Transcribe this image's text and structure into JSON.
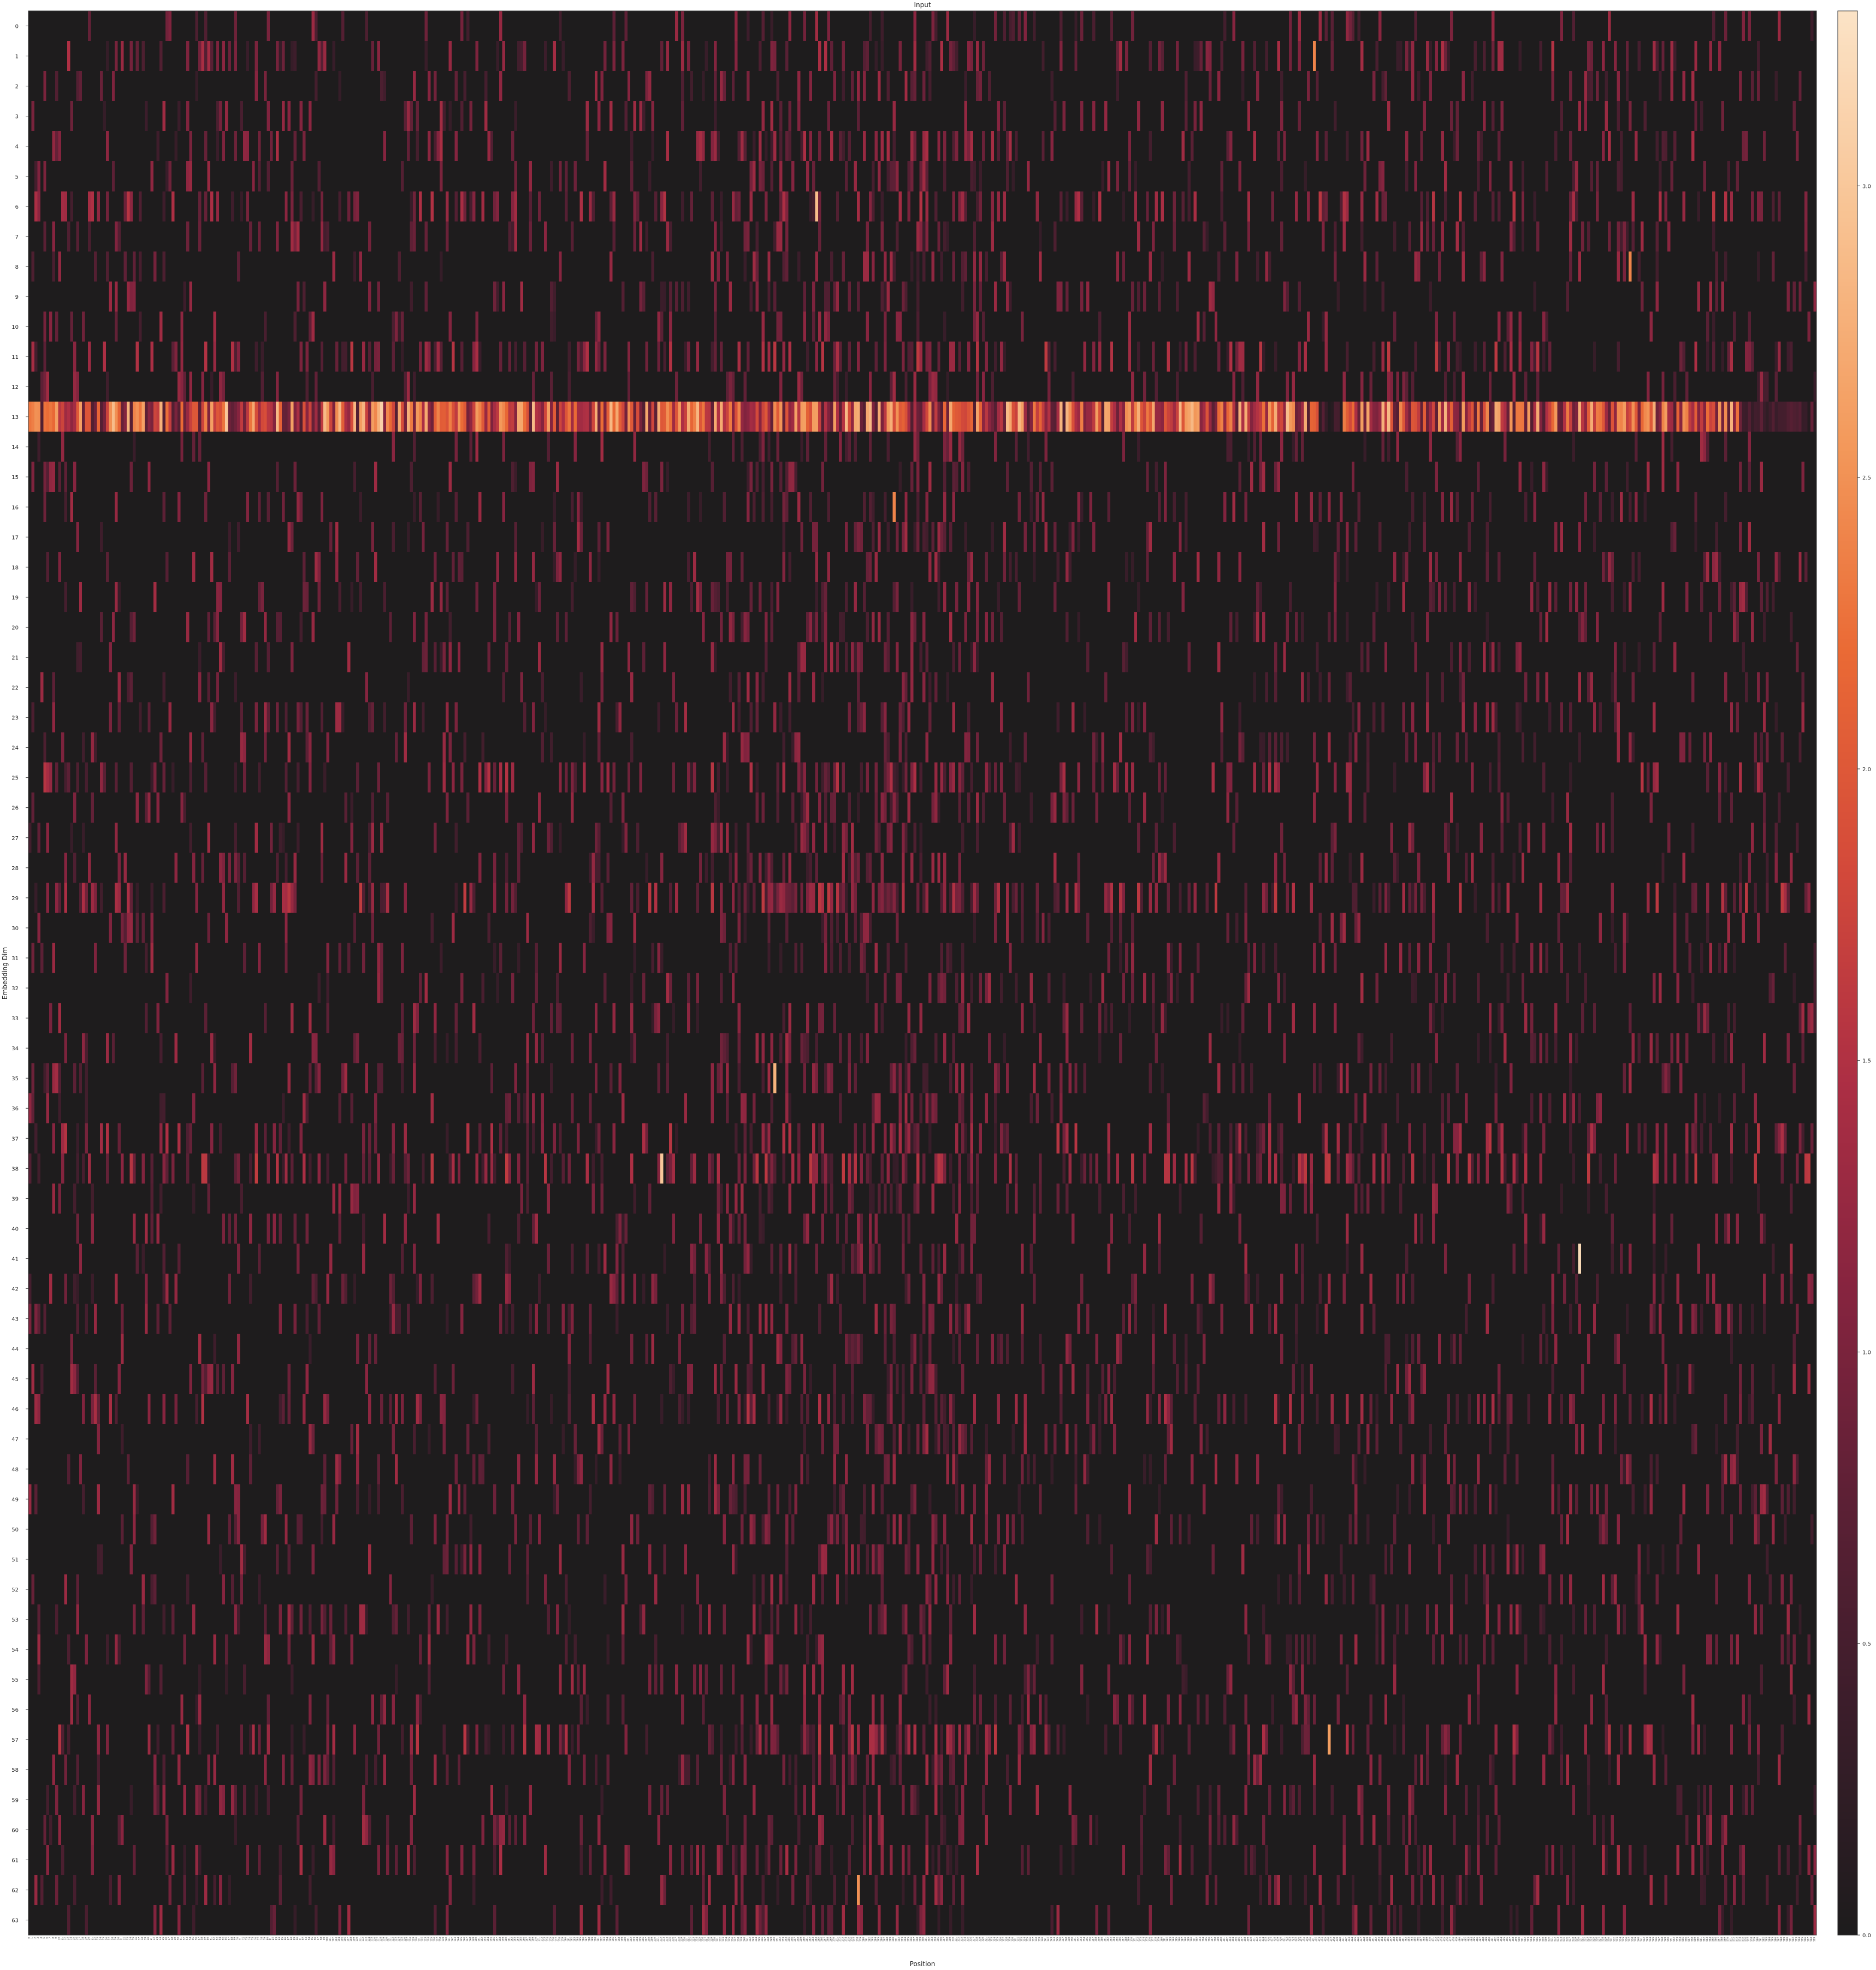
{
  "chart_data": {
    "type": "heatmap",
    "title": "Input",
    "xlabel": "Position",
    "ylabel": "Embedding Dim",
    "rows": 64,
    "columns": 600,
    "y_ticks": [
      0,
      1,
      2,
      3,
      4,
      5,
      6,
      7,
      8,
      9,
      10,
      11,
      12,
      13,
      14,
      15,
      16,
      17,
      18,
      19,
      20,
      21,
      22,
      23,
      24,
      25,
      26,
      27,
      28,
      29,
      30,
      31,
      32,
      33,
      34,
      35,
      36,
      37,
      38,
      39,
      40,
      41,
      42,
      43,
      44,
      45,
      46,
      47,
      48,
      49,
      50,
      51,
      52,
      53,
      54,
      55,
      56,
      57,
      58,
      59,
      60,
      61,
      62,
      63
    ],
    "colorbar": {
      "vmin": 0.0,
      "vmax": 3.3,
      "ticks": [
        "0.0",
        "0.5",
        "1.0",
        "1.5",
        "2.0",
        "2.5",
        "3.0"
      ],
      "tick_values": [
        0.0,
        0.5,
        1.0,
        1.5,
        2.0,
        2.5,
        3.0
      ]
    },
    "colormap": [
      "#1e1c1d",
      "#3a1d2a",
      "#5c2035",
      "#86243f",
      "#ad2f44",
      "#d44a3a",
      "#ea6a35",
      "#f39a5c",
      "#f8c190",
      "#fbe3c6"
    ],
    "background_color": "#1e1c1d",
    "hot_rows": [
      {
        "row": 1,
        "intensity": 0.35
      },
      {
        "row": 4,
        "intensity": 0.3
      },
      {
        "row": 6,
        "intensity": 0.4
      },
      {
        "row": 11,
        "intensity": 0.45
      },
      {
        "row": 13,
        "intensity": 1.75
      },
      {
        "row": 25,
        "intensity": 0.4
      },
      {
        "row": 29,
        "intensity": 0.45
      },
      {
        "row": 37,
        "intensity": 0.4
      },
      {
        "row": 38,
        "intensity": 0.45
      },
      {
        "row": 46,
        "intensity": 0.35
      },
      {
        "row": 57,
        "intensity": 0.4
      },
      {
        "row": 61,
        "intensity": 0.3
      }
    ],
    "notable_values": [
      {
        "row": 41,
        "position": 520,
        "value": 3.2
      },
      {
        "row": 13,
        "position": 118,
        "value": 3.1
      },
      {
        "row": 13,
        "position": 66,
        "value": 3.0
      },
      {
        "row": 38,
        "position": 212,
        "value": 3.0
      },
      {
        "row": 6,
        "position": 264,
        "value": 2.9
      },
      {
        "row": 35,
        "position": 250,
        "value": 2.8
      },
      {
        "row": 57,
        "position": 436,
        "value": 2.6
      },
      {
        "row": 16,
        "position": 290,
        "value": 2.4
      },
      {
        "row": 62,
        "position": 278,
        "value": 2.5
      },
      {
        "row": 1,
        "position": 431,
        "value": 2.4
      },
      {
        "row": 8,
        "position": 537,
        "value": 2.4
      }
    ]
  }
}
